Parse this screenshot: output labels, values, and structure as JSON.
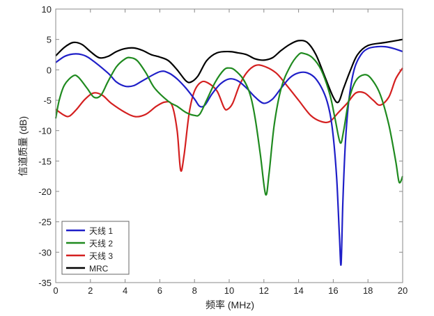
{
  "chart_data": {
    "type": "line",
    "title": "",
    "xlabel": "频率 (MHz)",
    "ylabel": "信道质量 (dB)",
    "xlim": [
      0,
      20
    ],
    "ylim": [
      -35,
      10
    ],
    "xticks": [
      0,
      2,
      4,
      6,
      8,
      10,
      12,
      14,
      16,
      18,
      20
    ],
    "yticks": [
      10,
      5,
      0,
      -5,
      -10,
      -15,
      -20,
      -25,
      -30,
      -35
    ],
    "grid": false,
    "legend_position": "bottom-left",
    "series": [
      {
        "name": "天线 1",
        "color": "#1f1fc8",
        "x": [
          0,
          0.5,
          1,
          1.5,
          2,
          3,
          3.5,
          4,
          4.5,
          5,
          6,
          6.5,
          7,
          7.5,
          8,
          8.3,
          8.6,
          9,
          9.5,
          10,
          10.5,
          11,
          11.5,
          12,
          12.5,
          13,
          13.5,
          14,
          14.5,
          15,
          15.5,
          15.8,
          16,
          16.2,
          16.35,
          16.45,
          16.55,
          16.7,
          16.9,
          17.2,
          17.6,
          18,
          18.5,
          19,
          19.5,
          20
        ],
        "y": [
          1.2,
          2.2,
          2.6,
          2.5,
          1.8,
          -0.5,
          -2,
          -2.7,
          -2.6,
          -1.8,
          -0.3,
          -0.5,
          -1.5,
          -3,
          -4.8,
          -6,
          -5.8,
          -4,
          -2.3,
          -1.5,
          -1.8,
          -3,
          -4.5,
          -5.5,
          -4.8,
          -3,
          -1.3,
          -0.5,
          -0.5,
          -1.5,
          -4,
          -7,
          -11,
          -18,
          -27,
          -32,
          -22,
          -12,
          -5,
          0,
          2.5,
          3.5,
          3.8,
          3.8,
          3.5,
          3
        ]
      },
      {
        "name": "天线 2",
        "color": "#1f8a1f",
        "x": [
          0,
          0.2,
          0.5,
          1,
          1.3,
          1.8,
          2.2,
          2.6,
          3,
          3.5,
          4,
          4.3,
          4.7,
          5.2,
          5.7,
          6.5,
          7,
          7.5,
          8,
          8.3,
          8.7,
          9.2,
          9.7,
          10,
          10.3,
          10.8,
          11.2,
          11.5,
          11.8,
          12.1,
          12.3,
          12.6,
          13,
          13.5,
          14,
          14.3,
          14.8,
          15.3,
          15.8,
          16.1,
          16.4,
          16.6,
          16.9,
          17.3,
          17.8,
          18.2,
          18.7,
          19.2,
          19.6,
          19.8,
          20
        ],
        "y": [
          -8,
          -5,
          -2.5,
          -1,
          -1.2,
          -3,
          -4.5,
          -4.2,
          -2,
          0.5,
          1.8,
          2,
          1.5,
          -0.5,
          -3,
          -5.2,
          -6,
          -7,
          -7.5,
          -7.3,
          -5,
          -2,
          0,
          0.3,
          0,
          -1.5,
          -4,
          -8,
          -14,
          -20.5,
          -17,
          -9,
          -3,
          0.5,
          2.5,
          2.7,
          2,
          0,
          -4,
          -8,
          -12,
          -10,
          -5,
          -1.8,
          -0.8,
          -1.5,
          -4,
          -9,
          -15,
          -18.5,
          -17.5
        ]
      },
      {
        "name": "天线 3",
        "color": "#d42020",
        "x": [
          0,
          0.5,
          0.8,
          1.2,
          1.7,
          2.2,
          2.7,
          3.2,
          4,
          4.6,
          5.2,
          5.8,
          6.3,
          6.7,
          7,
          7.2,
          7.4,
          7.7,
          8,
          8.4,
          8.8,
          9.3,
          9.7,
          9.9,
          10.2,
          10.6,
          11,
          11.5,
          12,
          12.7,
          13.3,
          14,
          14.7,
          15.3,
          15.8,
          16.3,
          16.8,
          17.3,
          17.8,
          18.3,
          18.7,
          19.2,
          19.6,
          20
        ],
        "y": [
          -6.5,
          -7.5,
          -7.6,
          -6.5,
          -4.8,
          -3.8,
          -4.2,
          -5.5,
          -7,
          -7.7,
          -7.3,
          -6,
          -5.3,
          -5.8,
          -10,
          -16.5,
          -14,
          -7,
          -3.5,
          -2,
          -2.2,
          -3.5,
          -6.2,
          -6.5,
          -5.5,
          -2.5,
          -0.5,
          0.7,
          0.6,
          -0.5,
          -2.5,
          -5,
          -7.5,
          -8.5,
          -8.5,
          -7,
          -5.5,
          -3.8,
          -3.8,
          -5,
          -5.8,
          -4.5,
          -1.5,
          0.3
        ]
      },
      {
        "name": "MRC",
        "color": "#000000",
        "x": [
          0,
          0.5,
          1,
          1.5,
          2,
          2.5,
          3,
          3.5,
          4,
          4.5,
          5,
          5.5,
          6,
          6.5,
          7,
          7.5,
          7.8,
          8.2,
          8.7,
          9.3,
          10,
          10.5,
          11,
          11.5,
          12,
          12.5,
          13,
          13.5,
          14,
          14.5,
          15,
          15.5,
          16,
          16.3,
          16.6,
          17,
          17.4,
          18,
          19,
          20
        ],
        "y": [
          2.3,
          3.7,
          4.5,
          4.2,
          3,
          2,
          2.2,
          3,
          3.5,
          3.6,
          3.2,
          2.5,
          2.1,
          1.5,
          0,
          -1.8,
          -2,
          -1,
          1.5,
          2.8,
          3,
          2.8,
          2.5,
          1.8,
          1.6,
          2,
          3.2,
          4.2,
          4.8,
          4.5,
          2.5,
          -1,
          -4.5,
          -5.3,
          -3,
          0,
          2.5,
          4,
          4.5,
          5
        ]
      }
    ]
  }
}
